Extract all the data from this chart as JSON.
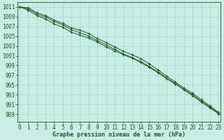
{
  "title": "Graphe pression niveau de la mer (hPa)",
  "bg_color": "#c8ede4",
  "grid_color": "#a8d8cc",
  "line_color": "#1a5c2a",
  "marker_color": "#1a5c2a",
  "xlim_min": -0.2,
  "xlim_max": 23.2,
  "ylim_min": 987.5,
  "ylim_max": 1012.0,
  "ytick_min": 989,
  "ytick_max": 1011,
  "ytick_step": 2,
  "xticks": [
    0,
    1,
    2,
    3,
    4,
    5,
    6,
    7,
    8,
    9,
    10,
    11,
    12,
    13,
    14,
    15,
    16,
    17,
    18,
    19,
    20,
    21,
    22,
    23
  ],
  "line1": [
    1011.0,
    1010.3,
    1009.2,
    1008.5,
    1007.5,
    1006.8,
    1005.8,
    1005.2,
    1004.6,
    1003.8,
    1002.8,
    1002.0,
    1001.2,
    1000.5,
    999.6,
    998.6,
    997.5,
    996.3,
    995.2,
    994.0,
    992.8,
    991.5,
    990.3,
    989.1
  ],
  "line2": [
    1011.0,
    1010.6,
    1009.5,
    1008.9,
    1008.0,
    1007.3,
    1006.3,
    1005.7,
    1005.0,
    1004.1,
    1003.2,
    1002.3,
    1001.4,
    1000.6,
    999.8,
    998.8,
    997.7,
    996.4,
    995.3,
    994.1,
    993.0,
    991.7,
    990.5,
    989.2
  ],
  "line3": [
    1011.0,
    1010.8,
    1009.8,
    1009.2,
    1008.3,
    1007.6,
    1006.7,
    1006.2,
    1005.5,
    1004.5,
    1003.7,
    1002.8,
    1001.9,
    1001.2,
    1000.4,
    999.3,
    998.1,
    996.8,
    995.6,
    994.4,
    993.3,
    992.0,
    990.7,
    989.4
  ],
  "xlabel_fontsize": 5.5,
  "ylabel_fontsize": 5.5,
  "title_fontsize": 6.0
}
